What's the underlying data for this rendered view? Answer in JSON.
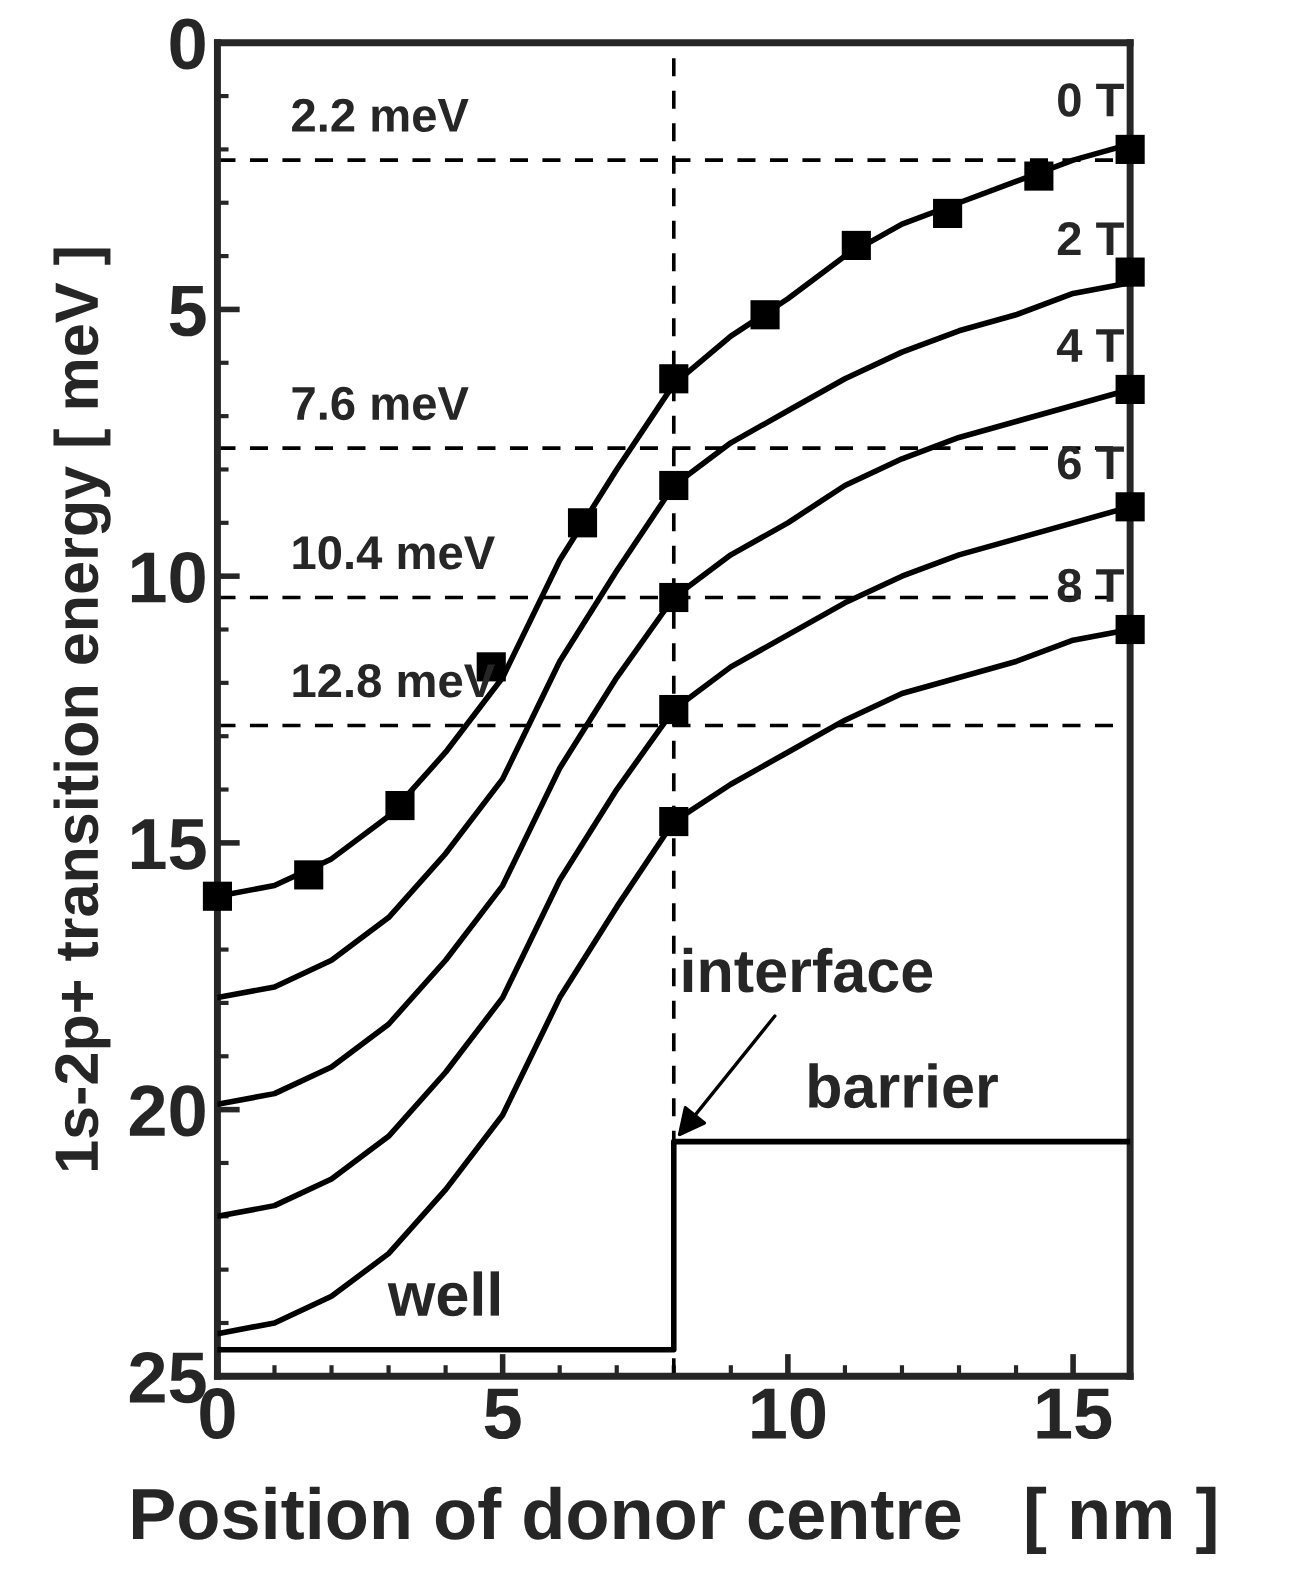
{
  "chart_data": {
    "type": "line",
    "xlabel": "Position of donor centre   [ nm ]",
    "ylabel": "1s-2p+ transition energy [ meV ]",
    "xlim": [
      0,
      16
    ],
    "ylim": [
      25,
      0
    ],
    "xticks": [
      0,
      5,
      10,
      15
    ],
    "yticks": [
      0,
      5,
      10,
      15,
      20,
      25
    ],
    "grid": false,
    "legend": false,
    "line_style": "solid",
    "x": [
      0,
      1,
      2,
      3,
      4,
      5,
      6,
      7,
      8,
      9,
      10,
      11,
      12,
      13,
      14,
      15,
      16
    ],
    "series": [
      {
        "name": "0 T",
        "color": "#000000",
        "marker": "none",
        "values": [
          16.0,
          15.8,
          15.3,
          14.5,
          13.3,
          11.9,
          9.7,
          8.0,
          6.4,
          5.5,
          4.8,
          4.0,
          3.4,
          3.0,
          2.6,
          2.2,
          1.9
        ]
      },
      {
        "name": "2 T",
        "color": "#000000",
        "marker": "none",
        "values": [
          17.9,
          17.7,
          17.2,
          16.4,
          15.2,
          13.8,
          11.6,
          9.9,
          8.3,
          7.5,
          6.9,
          6.3,
          5.8,
          5.4,
          5.1,
          4.7,
          4.5
        ]
      },
      {
        "name": "4 T",
        "color": "#000000",
        "marker": "none",
        "values": [
          19.9,
          19.7,
          19.2,
          18.4,
          17.2,
          15.8,
          13.6,
          11.9,
          10.4,
          9.6,
          9.0,
          8.3,
          7.8,
          7.4,
          7.1,
          6.8,
          6.5
        ]
      },
      {
        "name": "6 T",
        "color": "#000000",
        "marker": "none",
        "values": [
          22.0,
          21.8,
          21.3,
          20.5,
          19.3,
          17.9,
          15.7,
          14.0,
          12.5,
          11.7,
          11.1,
          10.5,
          10.0,
          9.6,
          9.3,
          9.0,
          8.7
        ]
      },
      {
        "name": "8 T",
        "color": "#000000",
        "marker": "none",
        "values": [
          24.2,
          24.0,
          23.5,
          22.7,
          21.5,
          20.1,
          17.9,
          16.2,
          14.6,
          13.9,
          13.3,
          12.7,
          12.2,
          11.9,
          11.6,
          11.2,
          11.0
        ]
      },
      {
        "type": "scatter",
        "color": "#000000",
        "marker": "square",
        "x": [
          0,
          1.6,
          3.2,
          4.8,
          6.4,
          8,
          9.6,
          11.2,
          12.8,
          14.4,
          16
        ],
        "values": [
          16.0,
          15.6,
          14.3,
          11.7,
          9.0,
          6.3,
          5.1,
          3.8,
          3.2,
          2.5,
          2.0
        ]
      },
      {
        "type": "scatter",
        "color": "#000000",
        "marker": "square",
        "x": [
          8,
          16,
          8,
          16,
          8,
          16,
          8,
          16
        ],
        "values": [
          8.3,
          4.3,
          10.4,
          6.5,
          12.5,
          8.7,
          14.6,
          11.0
        ]
      },
      {
        "color": "#000000",
        "marker": "none",
        "x": [
          0,
          8,
          8,
          16
        ],
        "values": [
          24.5,
          24.5,
          20.6,
          20.6
        ]
      }
    ],
    "ref_lines": [
      {
        "axis": "y",
        "value": 2.2,
        "label": "2.2 meV",
        "line_style": "dashed",
        "color": "#000000"
      },
      {
        "axis": "y",
        "value": 7.6,
        "label": "7.6 meV",
        "line_style": "dashed",
        "color": "#000000"
      },
      {
        "axis": "y",
        "value": 10.4,
        "label": "10.4 meV",
        "line_style": "dashed",
        "color": "#000000"
      },
      {
        "axis": "y",
        "value": 12.8,
        "label": "12.8 meV",
        "line_style": "dashed",
        "color": "#000000"
      },
      {
        "axis": "x",
        "value": 8,
        "line_style": "dashed",
        "color": "#000000"
      }
    ],
    "annotations": [
      {
        "text": "well",
        "x": 4,
        "y": 24.5
      },
      {
        "text": "barrier",
        "x": 12,
        "y": 20.6
      },
      {
        "text": "interface",
        "x": 8,
        "y": 20.6
      }
    ]
  }
}
